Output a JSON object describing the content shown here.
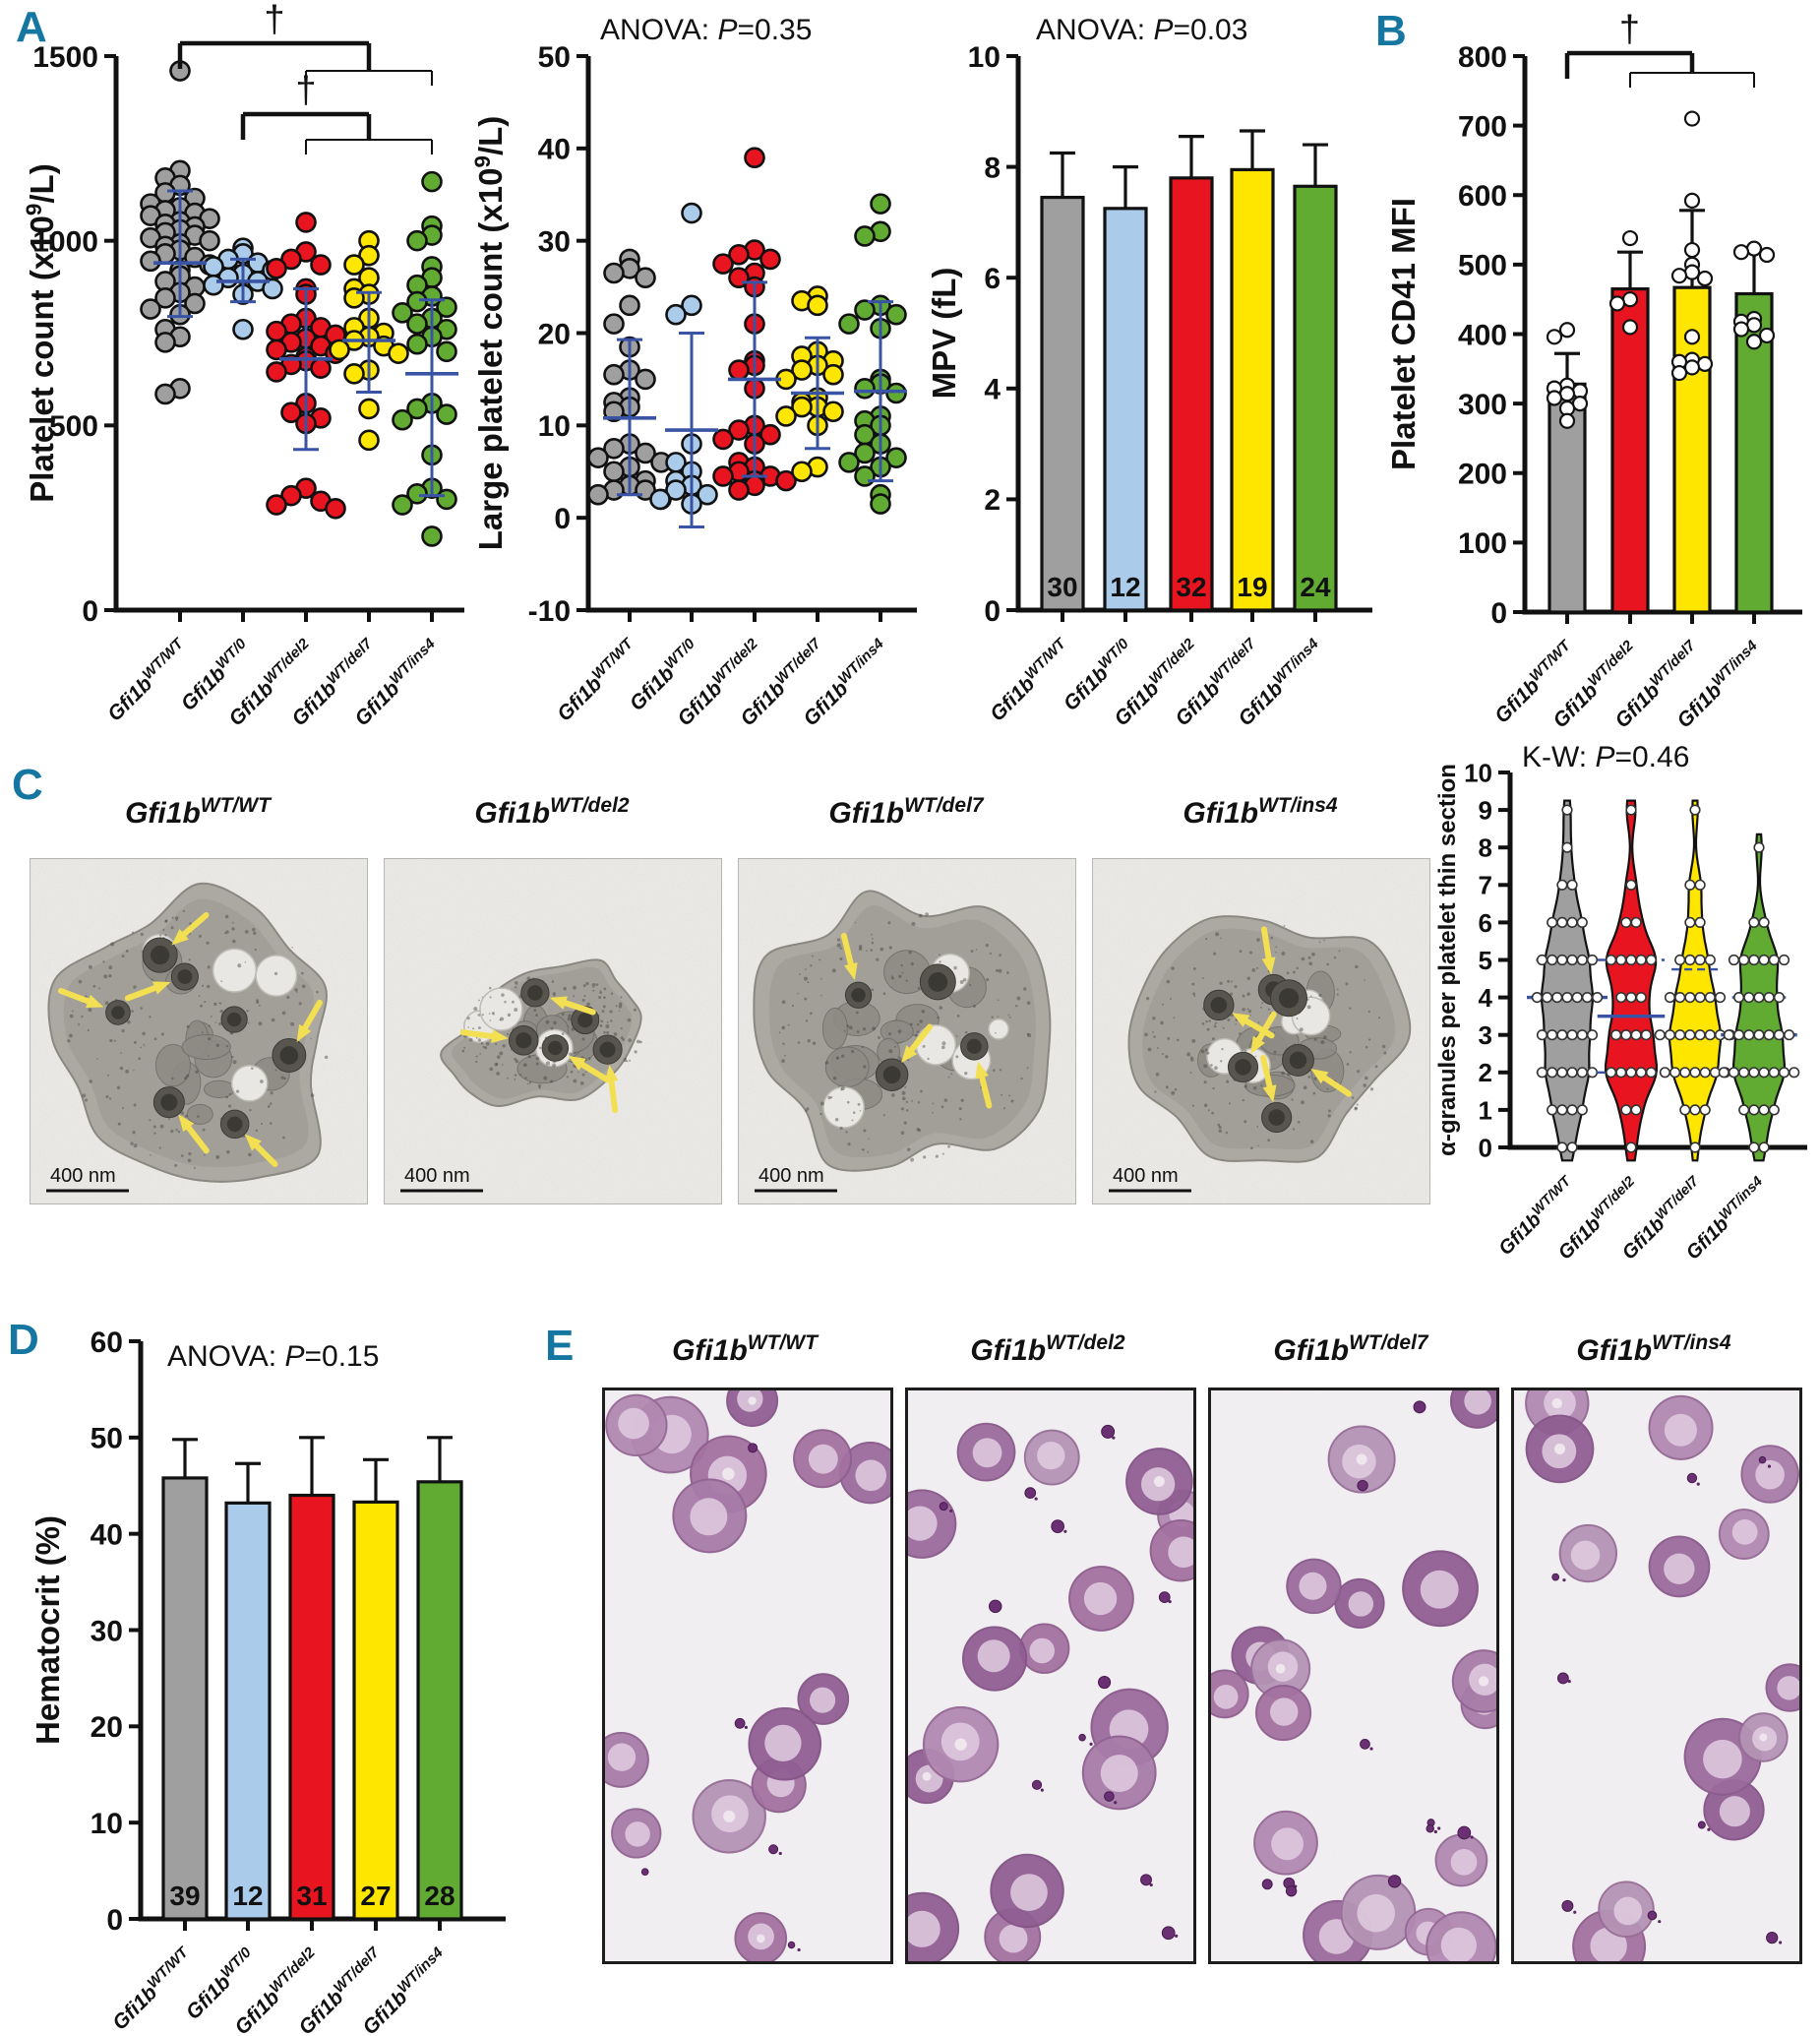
{
  "panels": {
    "a": "A",
    "b": "B",
    "c": "C",
    "d": "D",
    "e": "E"
  },
  "colors": {
    "panel_letter": "#1577a1",
    "axis": "#111111",
    "error_blue": "#3a54a5",
    "group_fills": [
      "#9f9f9f",
      "#aacbe9",
      "#e8141f",
      "#fee600",
      "#61ab33"
    ],
    "group_fills4": [
      "#9f9f9f",
      "#e8141f",
      "#fee600",
      "#61ab33"
    ]
  },
  "genotypes5": [
    {
      "base": "Gfi1b",
      "sup": "WT/WT"
    },
    {
      "base": "Gfi1b",
      "sup": "WT/0"
    },
    {
      "base": "Gfi1b",
      "sup": "WT/del2"
    },
    {
      "base": "Gfi1b",
      "sup": "WT/del7"
    },
    {
      "base": "Gfi1b",
      "sup": "WT/ins4"
    }
  ],
  "genotypes4": [
    {
      "base": "Gfi1b",
      "sup": "WT/WT"
    },
    {
      "base": "Gfi1b",
      "sup": "WT/del2"
    },
    {
      "base": "Gfi1b",
      "sup": "WT/del7"
    },
    {
      "base": "Gfi1b",
      "sup": "WT/ins4"
    }
  ],
  "panel_c": {
    "labels": [
      {
        "base": "Gfi1b",
        "sup": "WT/WT"
      },
      {
        "base": "Gfi1b",
        "sup": "WT/del2"
      },
      {
        "base": "Gfi1b",
        "sup": "WT/del7"
      },
      {
        "base": "Gfi1b",
        "sup": "WT/ins4"
      }
    ],
    "scale_bar": "400 nm"
  },
  "panel_e": {
    "labels": [
      {
        "base": "Gfi1b",
        "sup": "WT/WT"
      },
      {
        "base": "Gfi1b",
        "sup": "WT/del2"
      },
      {
        "base": "Gfi1b",
        "sup": "WT/del7"
      },
      {
        "base": "Gfi1b",
        "sup": "WT/ins4"
      }
    ]
  },
  "chart_data": [
    {
      "id": "platelet_count",
      "panel": "A",
      "type": "scatter",
      "ylabel": {
        "pre": "Platelet count (x10",
        "sup": "9",
        "post": "/L)"
      },
      "ylim": [
        0,
        1500
      ],
      "yticks": [
        0,
        500,
        1000,
        1500
      ],
      "groups_ref": "genotypes5",
      "colors_ref": "group_fills",
      "mean": [
        940,
        890,
        680,
        730,
        640
      ],
      "sd_low": [
        795,
        835,
        435,
        590,
        310
      ],
      "sd_high": [
        1135,
        950,
        870,
        860,
        840
      ],
      "points": [
        [
          1460,
          1190,
          1170,
          1150,
          1130,
          1115,
          1100,
          1090,
          1082,
          1075,
          1068,
          1060,
          1052,
          1045,
          1038,
          1030,
          1022,
          1015,
          1008,
          1000,
          992,
          985,
          975,
          965,
          955,
          945,
          935,
          920,
          905,
          890,
          875,
          860,
          845,
          830,
          815,
          800,
          760,
          740,
          725,
          600,
          585
        ],
        [
          980,
          965,
          950,
          940,
          930,
          920,
          910,
          900,
          890,
          880,
          870,
          855,
          760
        ],
        [
          1050,
          970,
          950,
          935,
          925,
          870,
          855,
          790,
          775,
          765,
          755,
          745,
          735,
          725,
          715,
          705,
          695,
          685,
          675,
          665,
          655,
          645,
          560,
          535,
          520,
          505,
          330,
          310,
          295,
          285,
          275
        ],
        [
          1000,
          960,
          935,
          900,
          870,
          855,
          845,
          790,
          765,
          750,
          740,
          730,
          715,
          705,
          695,
          650,
          640,
          545,
          460
        ],
        [
          1160,
          1040,
          1015,
          1000,
          930,
          900,
          880,
          850,
          835,
          820,
          805,
          790,
          775,
          760,
          740,
          720,
          700,
          560,
          545,
          530,
          515,
          420,
          330,
          315,
          300,
          285,
          200
        ]
      ],
      "significance": [
        {
          "sym": "†",
          "a": 0,
          "b": 3,
          "fork_a": 2,
          "fork_b": 4
        },
        {
          "sym": "†",
          "a": 1,
          "b": 3,
          "fork_a": 2,
          "fork_b": 4
        }
      ]
    },
    {
      "id": "large_platelet_count",
      "panel": "A",
      "type": "scatter",
      "title": {
        "pre": "ANOVA: ",
        "p": "P",
        "post": "=0.35"
      },
      "ylabel": {
        "pre": "Large platelet count (x10",
        "sup": "9",
        "post": "/L)"
      },
      "ylim": [
        -10,
        50
      ],
      "yticks": [
        -10,
        0,
        10,
        20,
        30,
        40,
        50
      ],
      "groups_ref": "genotypes5",
      "colors_ref": "group_fills",
      "mean": [
        10.8,
        9.5,
        15,
        13.5,
        13.7
      ],
      "sd_low": [
        2.5,
        -1,
        4.5,
        7.5,
        4
      ],
      "sd_high": [
        19.3,
        20,
        25.5,
        19.5,
        23.4
      ],
      "points": [
        [
          28,
          27,
          26.5,
          26,
          23,
          21,
          18.5,
          16,
          15.5,
          15,
          13,
          12.5,
          12,
          11.5,
          8,
          7.5,
          7,
          6.5,
          6,
          5.5,
          5,
          4,
          3.5,
          3,
          3,
          2.5,
          2
        ],
        [
          33,
          23,
          22,
          8,
          6,
          5,
          4,
          3.5,
          3,
          2.5,
          2,
          1.5
        ],
        [
          39,
          29,
          28.5,
          28,
          27.5,
          26.5,
          26,
          25,
          21,
          17,
          16.5,
          16,
          14,
          10,
          9.5,
          9,
          8.5,
          8,
          6,
          5.5,
          5,
          4.5,
          4.5,
          4,
          4,
          3.5,
          3
        ],
        [
          24,
          23.5,
          23,
          18,
          17.5,
          17,
          16.5,
          16,
          15.5,
          15,
          13,
          12.5,
          12,
          12,
          11.5,
          11,
          10,
          5.5,
          5
        ],
        [
          34,
          31,
          30.5,
          23,
          22.5,
          22,
          21,
          20.5,
          15,
          14.5,
          14,
          13.5,
          11,
          10.5,
          10,
          9,
          8,
          7,
          6.5,
          6,
          5.5,
          4.5,
          2.5,
          1.5
        ]
      ]
    },
    {
      "id": "mpv",
      "panel": "A",
      "type": "bar",
      "title": {
        "pre": "ANOVA: ",
        "p": "P",
        "post": "=0.03"
      },
      "ylabel": {
        "pre": "MPV (fL)"
      },
      "ylim": [
        0,
        10
      ],
      "yticks": [
        0,
        2,
        4,
        6,
        8,
        10
      ],
      "groups_ref": "genotypes5",
      "colors_ref": "group_fills",
      "values": [
        7.45,
        7.25,
        7.8,
        7.95,
        7.65
      ],
      "err_high": [
        8.25,
        8.0,
        8.55,
        8.65,
        8.4
      ],
      "n_labels": [
        "30",
        "12",
        "32",
        "19",
        "24"
      ]
    },
    {
      "id": "cd41_mfi",
      "panel": "B",
      "type": "bar",
      "ylabel": {
        "pre": "Platelet CD41 MFI"
      },
      "ylim": [
        0,
        800
      ],
      "yticks": [
        0,
        100,
        200,
        300,
        400,
        500,
        600,
        700,
        800
      ],
      "groups_ref": "genotypes4",
      "colors_ref": "group_fills4",
      "values": [
        328,
        465,
        467,
        458
      ],
      "err_high": [
        372,
        518,
        578,
        518
      ],
      "points": [
        [
          275,
          293,
          300,
          308,
          314,
          318,
          322,
          326,
          396,
          406
        ],
        [
          410,
          444,
          450,
          538
        ],
        [
          344,
          352,
          357,
          360,
          363,
          396,
          480,
          484,
          489,
          500,
          521,
          592,
          710
        ],
        [
          389,
          398,
          407,
          413,
          418,
          422,
          514,
          518,
          523
        ]
      ],
      "significance": [
        {
          "sym": "†",
          "a": 0,
          "b": 2,
          "fork_a": 1,
          "fork_b": 3
        }
      ]
    },
    {
      "id": "alpha_granules",
      "panel": "C",
      "type": "violin",
      "title": {
        "pre": "K-W: ",
        "p": "P",
        "post": "=0.46"
      },
      "ylabel": {
        "pre": "α-granules per platelet thin section"
      },
      "ylim": [
        0,
        10
      ],
      "yticks": [
        0,
        1,
        2,
        3,
        4,
        5,
        6,
        7,
        8,
        9,
        10
      ],
      "groups_ref": "genotypes4",
      "colors_ref": "group_fills4",
      "median": [
        4,
        3.5,
        3,
        3
      ],
      "q1": [
        2,
        2,
        2,
        2
      ],
      "q3": [
        5,
        5,
        4.75,
        4
      ],
      "value_counts": [
        {
          "0": 2,
          "1": 4,
          "2": 6,
          "3": 6,
          "4": 7,
          "5": 6,
          "6": 4,
          "7": 2,
          "8": 1,
          "9": 1
        },
        {
          "0": 1,
          "1": 2,
          "2": 5,
          "3": 4,
          "4": 3,
          "5": 5,
          "6": 2,
          "7": 1,
          "9": 1
        },
        {
          "0": 1,
          "1": 3,
          "2": 7,
          "3": 8,
          "4": 6,
          "5": 4,
          "6": 2,
          "7": 2,
          "9": 1
        },
        {
          "0": 2,
          "1": 4,
          "2": 8,
          "3": 7,
          "4": 5,
          "5": 6,
          "6": 2,
          "8": 1
        }
      ]
    },
    {
      "id": "hematocrit",
      "panel": "D",
      "type": "bar",
      "title": {
        "pre": "ANOVA: ",
        "p": "P",
        "post": "=0.15"
      },
      "ylabel": {
        "pre": "Hematocrit (%)"
      },
      "ylim": [
        0,
        60
      ],
      "yticks": [
        0,
        10,
        20,
        30,
        40,
        50,
        60
      ],
      "groups_ref": "genotypes5",
      "colors_ref": "group_fills",
      "values": [
        45.8,
        43.2,
        44.0,
        43.3,
        45.4
      ],
      "err_high": [
        49.8,
        47.3,
        50,
        47.7,
        50
      ],
      "n_labels": [
        "39",
        "12",
        "31",
        "27",
        "28"
      ]
    }
  ]
}
